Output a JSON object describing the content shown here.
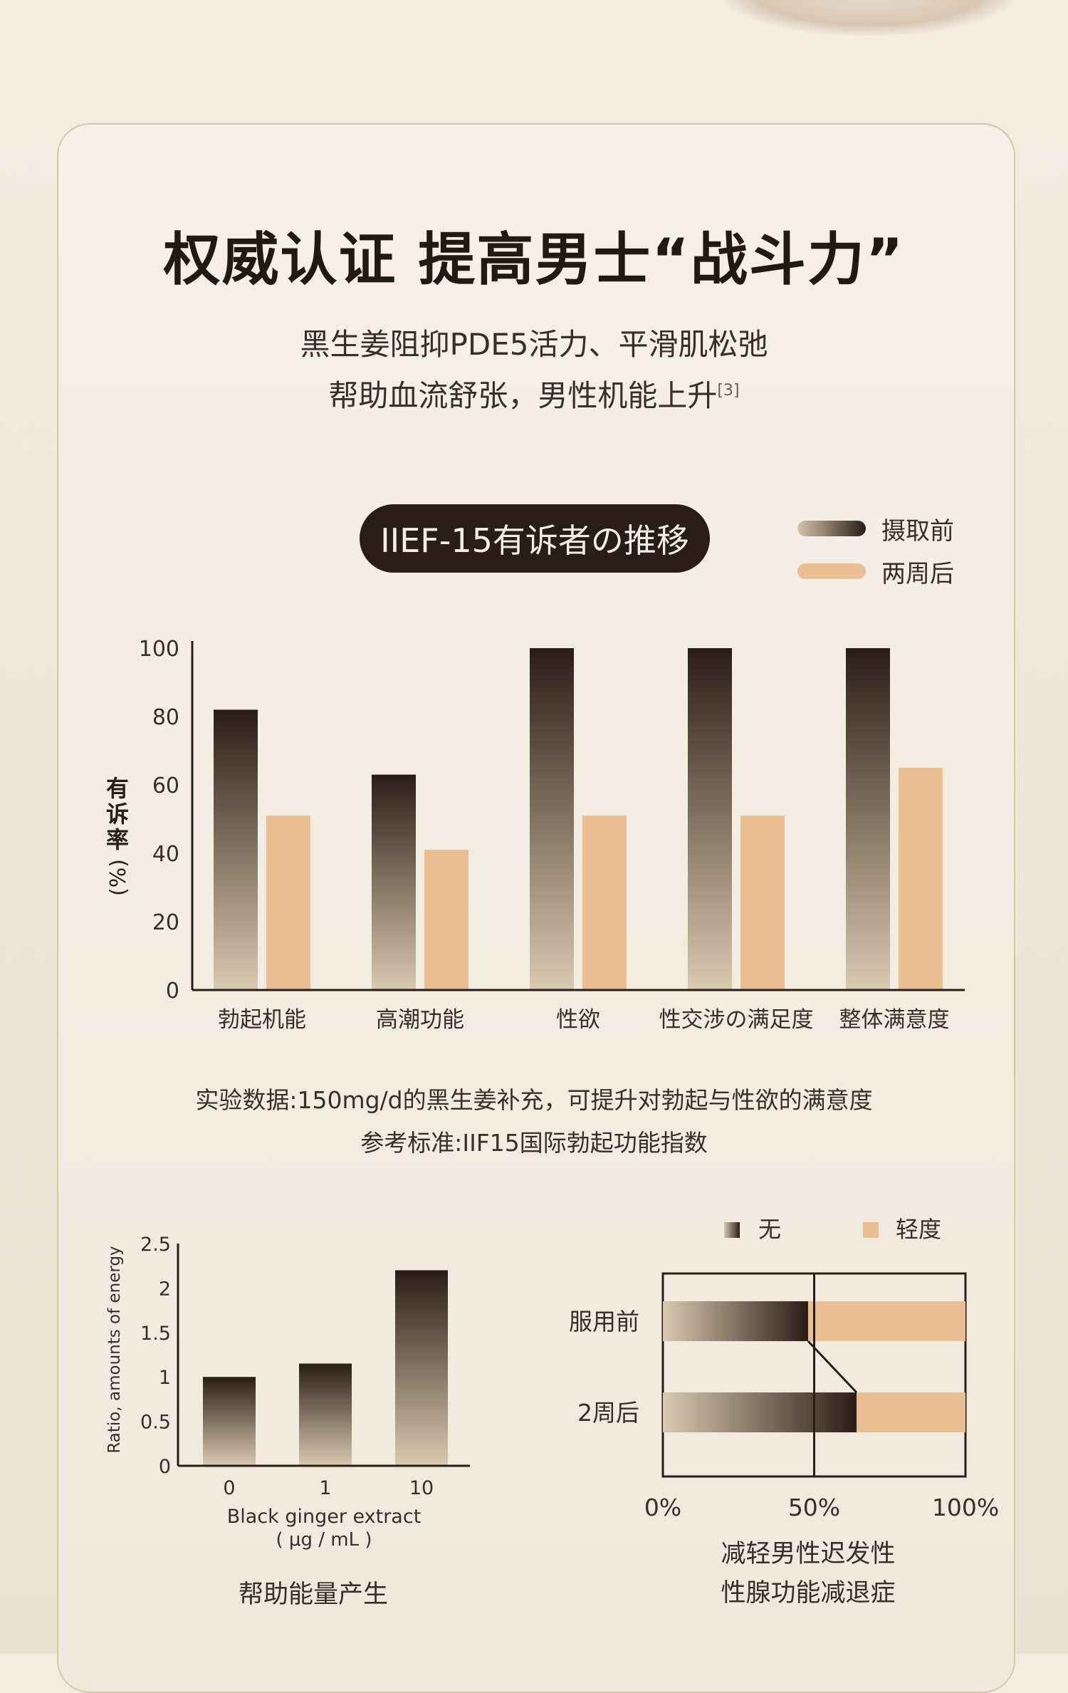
{
  "title": "权威认证 提高男士“战斗力”",
  "subtitle_line1": "黑生姜阻抑PDE5活力、平滑肌松弛",
  "subtitle_line2": "帮助血流舒张，男性机能上升",
  "subtitle_ref": "[3]",
  "pill_label": "IIEF-15有诉者の推移",
  "legend": {
    "before": "摄取前",
    "after": "两周后"
  },
  "colors": {
    "dark": "#2a1d16",
    "light": "#d6c5ab",
    "orange": "#ebbd92",
    "axis": "#2a1d16"
  },
  "note_line1": "实验数据:150mg/d的黑生姜补充，可提升对勃起与性欲的满意度",
  "note_line2": "参考标准:IIF15国际勃起功能指数",
  "chart_data": [
    {
      "type": "bar",
      "title": "IIEF-15有诉者の推移",
      "ylabel": "有诉率(%)",
      "ylim": [
        0,
        100
      ],
      "yticks": [
        0,
        20,
        40,
        60,
        80,
        100
      ],
      "categories": [
        "勃起机能",
        "高潮功能",
        "性欲",
        "性交涉の满足度",
        "整体满意度"
      ],
      "series": [
        {
          "name": "摄取前",
          "values": [
            82,
            63,
            100,
            100,
            100
          ]
        },
        {
          "name": "两周后",
          "values": [
            51,
            41,
            51,
            51,
            65
          ]
        }
      ],
      "legend": "top-right",
      "grid": false
    },
    {
      "type": "bar",
      "xlabel": "Black ginger extract",
      "xunit": "( μg / mL )",
      "ylabel": "Ratio, amounts of energy",
      "ylim": [
        0,
        2.5
      ],
      "yticks": [
        "0",
        "0.5",
        "1",
        "1.5",
        "2",
        "2.5"
      ],
      "categories": [
        "0",
        "1",
        "10"
      ],
      "values": [
        1.0,
        1.15,
        2.2
      ],
      "caption": "帮助能量产生"
    },
    {
      "type": "bar",
      "orientation": "horizontal",
      "stacked": true,
      "categories": [
        "服用前",
        "2周后"
      ],
      "series": [
        {
          "name": "无",
          "values": [
            48,
            64
          ]
        },
        {
          "name": "轻度",
          "values": [
            52,
            36
          ]
        }
      ],
      "xticks": [
        "0%",
        "50%",
        "100%"
      ],
      "xlim": [
        0,
        100
      ],
      "caption_line1": "减轻男性迟发性",
      "caption_line2": "性腺功能减退症"
    }
  ]
}
